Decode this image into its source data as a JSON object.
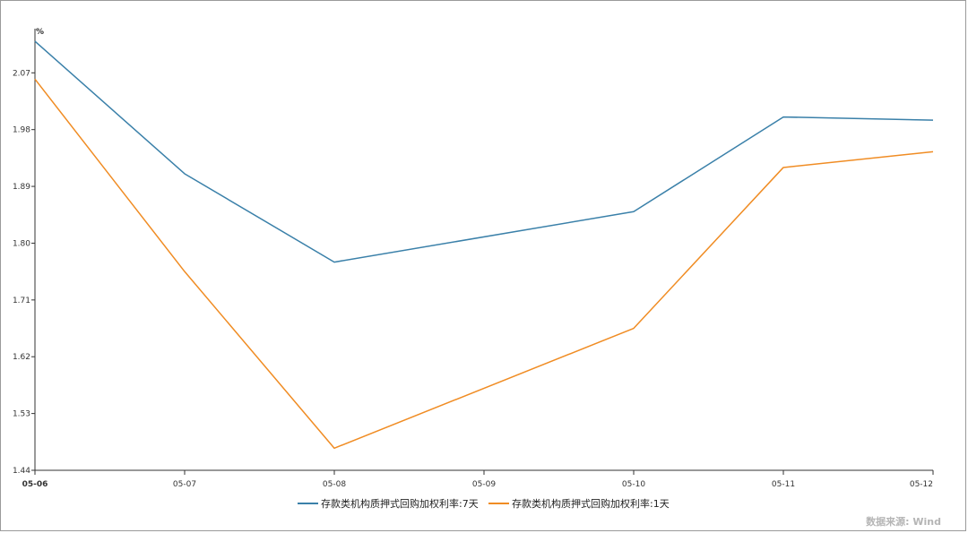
{
  "chart_data": {
    "type": "line",
    "x": [
      "05-06",
      "05-07",
      "05-08",
      "05-09",
      "05-10",
      "05-11",
      "05-12"
    ],
    "series": [
      {
        "name": "存款类机构质押式回购加权利率:7天",
        "color": "#3a80a9",
        "values": [
          2.12,
          1.91,
          1.77,
          null,
          1.85,
          2.0,
          1.995
        ]
      },
      {
        "name": "存款类机构质押式回购加权利率:1天",
        "color": "#f08c23",
        "values": [
          2.06,
          1.755,
          1.475,
          null,
          1.665,
          1.92,
          1.945
        ]
      }
    ],
    "ylabel": "%",
    "yticks": [
      "2.07",
      "1.98",
      "1.89",
      "1.80",
      "1.71",
      "1.62",
      "1.53",
      "1.44"
    ],
    "ylim": [
      1.44,
      2.14
    ],
    "legend_position": "bottom-center"
  },
  "footer": {
    "source": "数据来源: Wind"
  }
}
